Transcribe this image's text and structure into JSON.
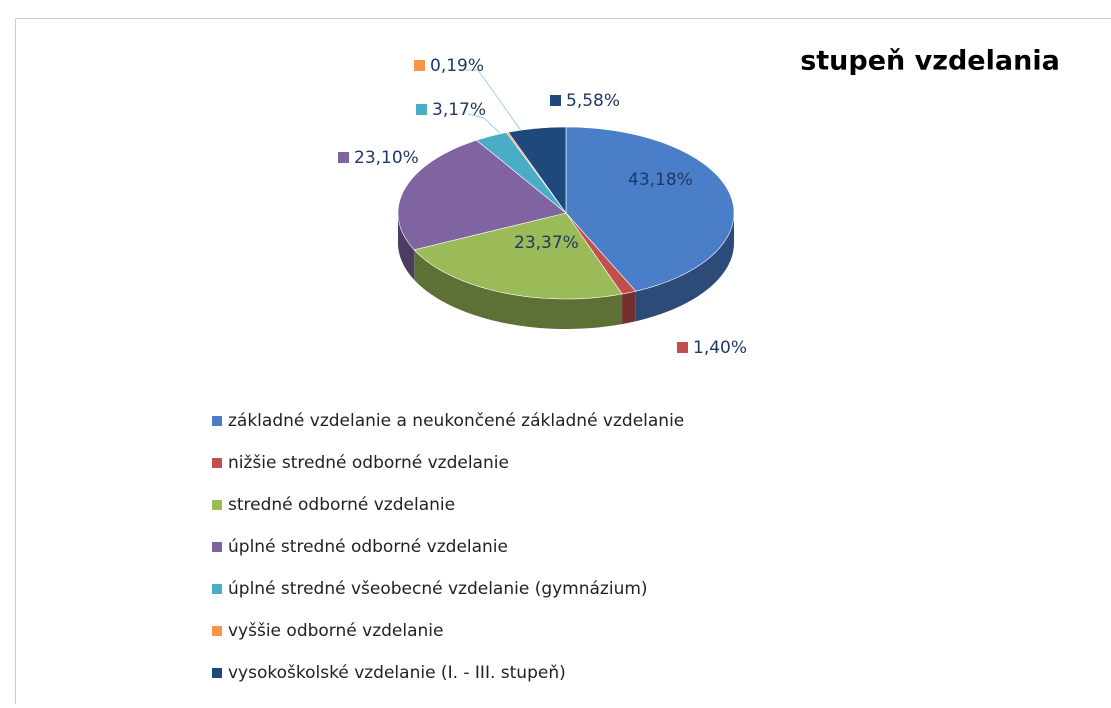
{
  "chart_data": {
    "type": "pie3d",
    "title": "stupeň vzdelania",
    "categories": [
      "základné vzdelanie a neukončené základné vzdelanie",
      "nižšie stredné odborné vzdelanie",
      "stredné odborné vzdelanie",
      "úplné stredné odborné vzdelanie",
      "úplné stredné všeobecné vzdelanie (gymnázium)",
      "vyššie odborné vzdelanie",
      "vysokoškolské vzdelanie (I. - III. stupeň)"
    ],
    "values": [
      43.18,
      1.4,
      23.37,
      23.1,
      3.17,
      0.19,
      5.58
    ],
    "value_labels": [
      "43,18%",
      "1,40%",
      "23,37%",
      "23,10%",
      "3,17%",
      "0,19%",
      "5,58%"
    ],
    "colors": [
      "#4a7ec9",
      "#c0504d",
      "#9bbb59",
      "#8064a2",
      "#4bacc6",
      "#f79646",
      "#1f497d"
    ],
    "legend": "bottom-left"
  }
}
